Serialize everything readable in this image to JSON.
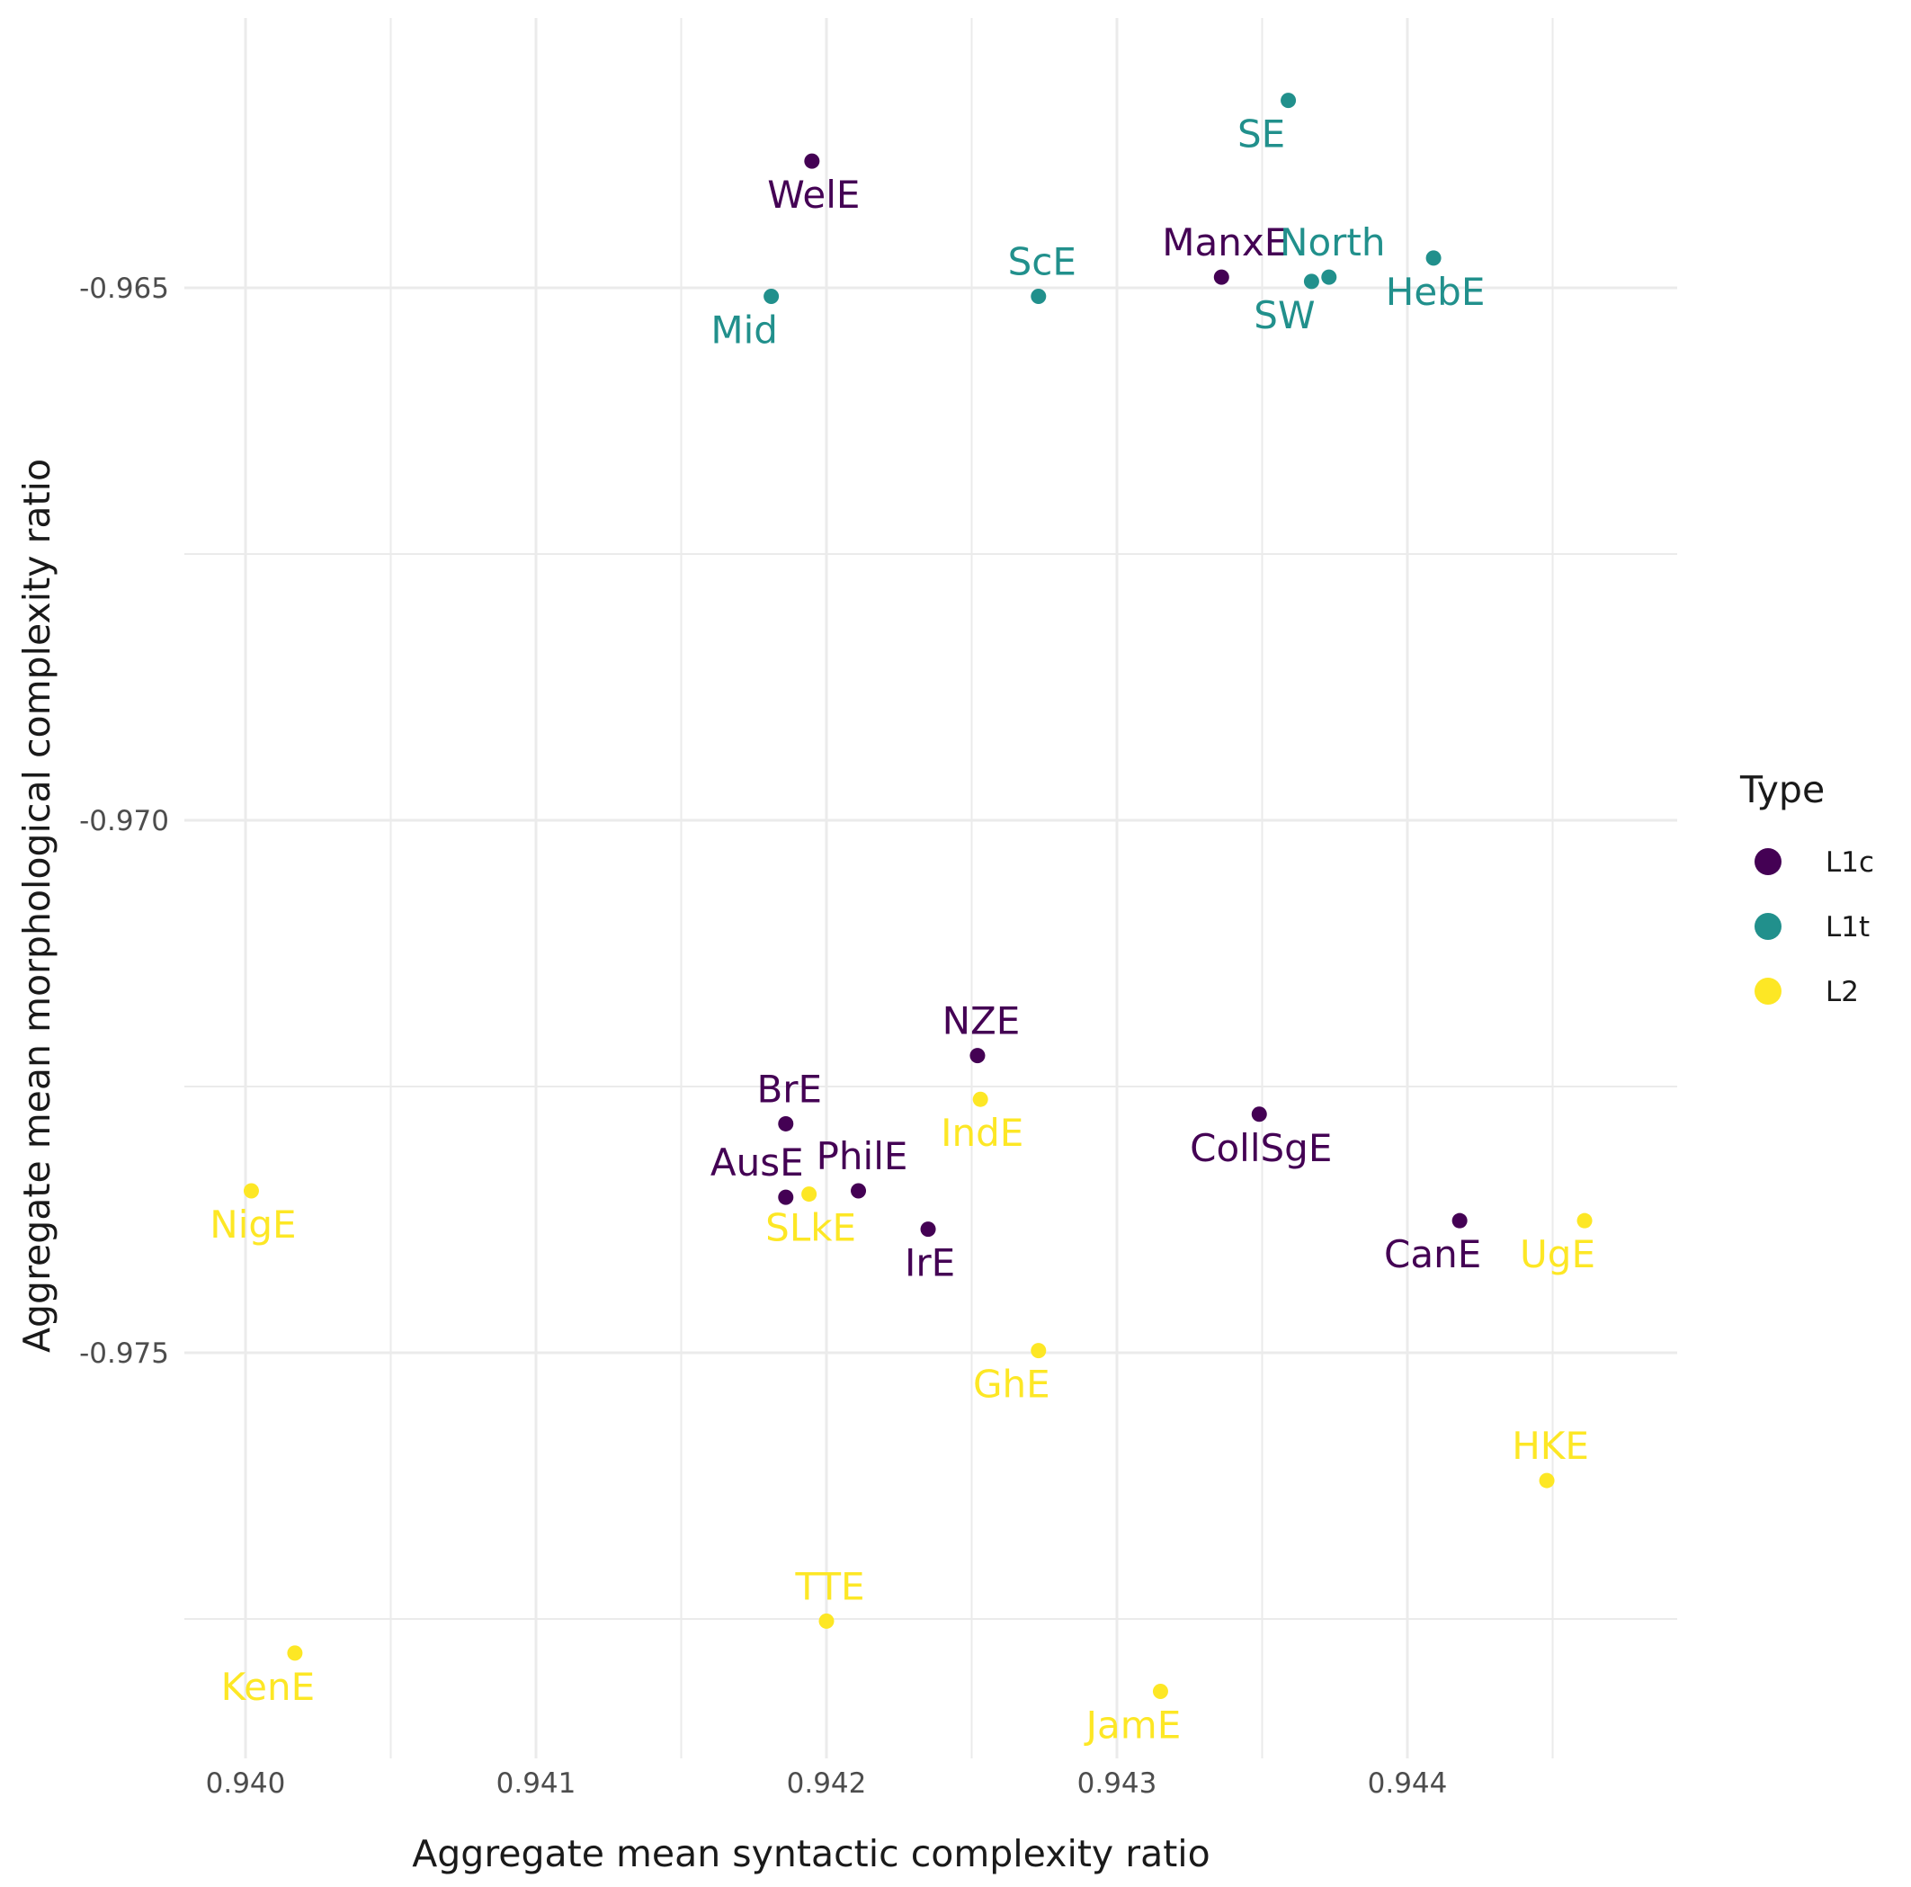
{
  "chart_data": {
    "type": "scatter",
    "title": "",
    "xlabel": "Aggregate mean syntactic complexity ratio",
    "ylabel": "Aggregate mean morphological complexity ratio",
    "xlim": [
      0.9398,
      0.9449
    ],
    "ylim": [
      -0.9787,
      -0.963
    ],
    "x_ticks": [
      0.94,
      0.941,
      0.942,
      0.943,
      0.944
    ],
    "x_tick_labels": [
      "0.940",
      "0.941",
      "0.942",
      "0.943",
      "0.944"
    ],
    "y_ticks": [
      -0.965,
      -0.97,
      -0.975
    ],
    "y_tick_labels": [
      "-0.965",
      "-0.970",
      "-0.975"
    ],
    "grid": true,
    "legend": {
      "title": "Type",
      "position": "right",
      "entries": [
        {
          "label": "L1c",
          "color": "#440154"
        },
        {
          "label": "L1t",
          "color": "#21908C"
        },
        {
          "label": "L2",
          "color": "#FDE725"
        }
      ]
    },
    "points": [
      {
        "label": "WelE",
        "type": "L1c",
        "x": 0.94195,
        "y": -0.96381,
        "label_pos": "below"
      },
      {
        "label": "ManxE",
        "type": "L1c",
        "x": 0.94336,
        "y": -0.9649,
        "label_pos": "above"
      },
      {
        "label": "NZE",
        "type": "L1c",
        "x": 0.94252,
        "y": -0.97221,
        "label_pos": "above"
      },
      {
        "label": "BrE",
        "type": "L1c",
        "x": 0.94186,
        "y": -0.97285,
        "label_pos": "above"
      },
      {
        "label": "AusE",
        "type": "L1c",
        "x": 0.94186,
        "y": -0.97354,
        "label_pos": "above-left"
      },
      {
        "label": "PhilE",
        "type": "L1c",
        "x": 0.94211,
        "y": -0.97348,
        "label_pos": "above"
      },
      {
        "label": "IrE",
        "type": "L1c",
        "x": 0.94235,
        "y": -0.97384,
        "label_pos": "below"
      },
      {
        "label": "CollSgE",
        "type": "L1c",
        "x": 0.94349,
        "y": -0.97276,
        "label_pos": "below"
      },
      {
        "label": "CanE",
        "type": "L1c",
        "x": 0.94418,
        "y": -0.97376,
        "label_pos": "below-left"
      },
      {
        "label": "SE",
        "type": "L1t",
        "x": 0.94359,
        "y": -0.96324,
        "label_pos": "below-left"
      },
      {
        "label": "Mid",
        "type": "L1t",
        "x": 0.94181,
        "y": -0.96508,
        "label_pos": "below-left"
      },
      {
        "label": "ScE",
        "type": "L1t",
        "x": 0.94273,
        "y": -0.96508,
        "label_pos": "above"
      },
      {
        "label": "North",
        "type": "L1t",
        "x": 0.94373,
        "y": -0.9649,
        "label_pos": "above"
      },
      {
        "label": "SW",
        "type": "L1t",
        "x": 0.94367,
        "y": -0.96494,
        "label_pos": "below-left"
      },
      {
        "label": "HebE",
        "type": "L1t",
        "x": 0.94409,
        "y": -0.96472,
        "label_pos": "below"
      },
      {
        "label": "NigE",
        "type": "L2",
        "x": 0.94002,
        "y": -0.97348,
        "label_pos": "below"
      },
      {
        "label": "IndE",
        "type": "L2",
        "x": 0.94253,
        "y": -0.97262,
        "label_pos": "below"
      },
      {
        "label": "SLkE",
        "type": "L2",
        "x": 0.94194,
        "y": -0.97351,
        "label_pos": "below"
      },
      {
        "label": "UgE",
        "type": "L2",
        "x": 0.94461,
        "y": -0.97376,
        "label_pos": "below-left"
      },
      {
        "label": "GhE",
        "type": "L2",
        "x": 0.94273,
        "y": -0.97498,
        "label_pos": "below-left"
      },
      {
        "label": "HKE",
        "type": "L2",
        "x": 0.94448,
        "y": -0.9762,
        "label_pos": "above"
      },
      {
        "label": "TTE",
        "type": "L2",
        "x": 0.942,
        "y": -0.97752,
        "label_pos": "above"
      },
      {
        "label": "KenE",
        "type": "L2",
        "x": 0.94017,
        "y": -0.97782,
        "label_pos": "below-left"
      },
      {
        "label": "JamE",
        "type": "L2",
        "x": 0.94315,
        "y": -0.97818,
        "label_pos": "below-left"
      }
    ]
  }
}
